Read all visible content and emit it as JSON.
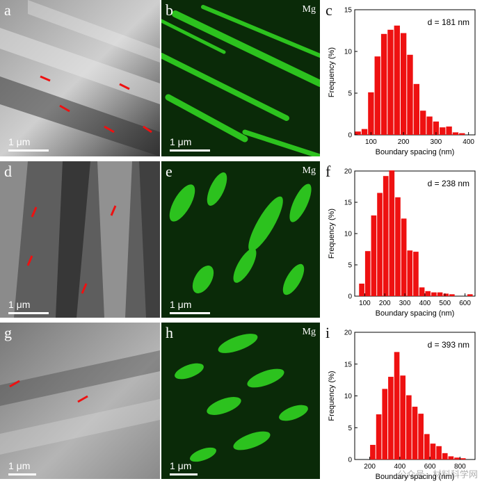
{
  "rows": [
    {
      "sem": {
        "label": "a",
        "scale": "1 μm"
      },
      "map": {
        "label": "b",
        "element": "Mg",
        "scale": "1 μm"
      },
      "hist_label": "c"
    },
    {
      "sem": {
        "label": "d",
        "scale": "1 μm"
      },
      "map": {
        "label": "e",
        "element": "Mg",
        "scale": "1 μm"
      },
      "hist_label": "f"
    },
    {
      "sem": {
        "label": "g",
        "scale": "1 μm"
      },
      "map": {
        "label": "h",
        "element": "Mg",
        "scale": "1 μm"
      },
      "hist_label": "i"
    }
  ],
  "colors": {
    "bar": "#ee1111",
    "map_green": "#33dd22",
    "arrow": "#ee1111"
  },
  "watermark": "公众号 · 材料科学网",
  "chart_data": [
    {
      "type": "bar",
      "annotation": "d = 181 nm",
      "xlabel": "Boundary spacing (nm)",
      "ylabel": "Frequency (%)",
      "xlim": [
        50,
        420
      ],
      "ylim": [
        0,
        15
      ],
      "xticks": [
        100,
        200,
        300,
        400
      ],
      "yticks": [
        0,
        5,
        10,
        15
      ],
      "bin_width": 20,
      "x": [
        60,
        80,
        100,
        120,
        140,
        160,
        180,
        200,
        220,
        240,
        260,
        280,
        300,
        320,
        340,
        360,
        380
      ],
      "values": [
        0.4,
        0.7,
        5.1,
        9.4,
        12.1,
        12.6,
        13.1,
        12.2,
        9.6,
        6.1,
        2.9,
        2.2,
        1.6,
        0.9,
        1.0,
        0.3,
        0.2
      ]
    },
    {
      "type": "bar",
      "annotation": "d = 238 nm",
      "xlabel": "Boundary spacing (nm)",
      "ylabel": "Frequency (%)",
      "xlim": [
        50,
        650
      ],
      "ylim": [
        0,
        20
      ],
      "xticks": [
        100,
        200,
        300,
        400,
        500,
        600
      ],
      "yticks": [
        0,
        5,
        10,
        15,
        20
      ],
      "bin_width": 30,
      "x": [
        85,
        115,
        145,
        175,
        205,
        235,
        265,
        295,
        325,
        355,
        385,
        415,
        445,
        475,
        505,
        535,
        565,
        595,
        625
      ],
      "values": [
        2.0,
        7.2,
        12.9,
        16.5,
        19.2,
        20.1,
        15.8,
        12.4,
        7.3,
        7.1,
        1.4,
        0.8,
        0.6,
        0.6,
        0.4,
        0.3,
        0.0,
        0.0,
        0.3
      ]
    },
    {
      "type": "bar",
      "annotation": "d = 393 nm",
      "xlabel": "Boundary spacing (nm)",
      "ylabel": "Frequency (%)",
      "xlim": [
        100,
        900
      ],
      "ylim": [
        0,
        20
      ],
      "xticks": [
        200,
        400,
        600,
        800
      ],
      "yticks": [
        0,
        5,
        10,
        15,
        20
      ],
      "bin_width": 40,
      "x": [
        220,
        260,
        300,
        340,
        380,
        420,
        460,
        500,
        540,
        580,
        620,
        660,
        700,
        740,
        780,
        820
      ],
      "values": [
        2.3,
        7.1,
        11.1,
        13.0,
        16.9,
        13.2,
        10.1,
        8.3,
        7.2,
        4.0,
        2.5,
        2.1,
        1.0,
        0.5,
        0.3,
        0.2
      ]
    }
  ]
}
